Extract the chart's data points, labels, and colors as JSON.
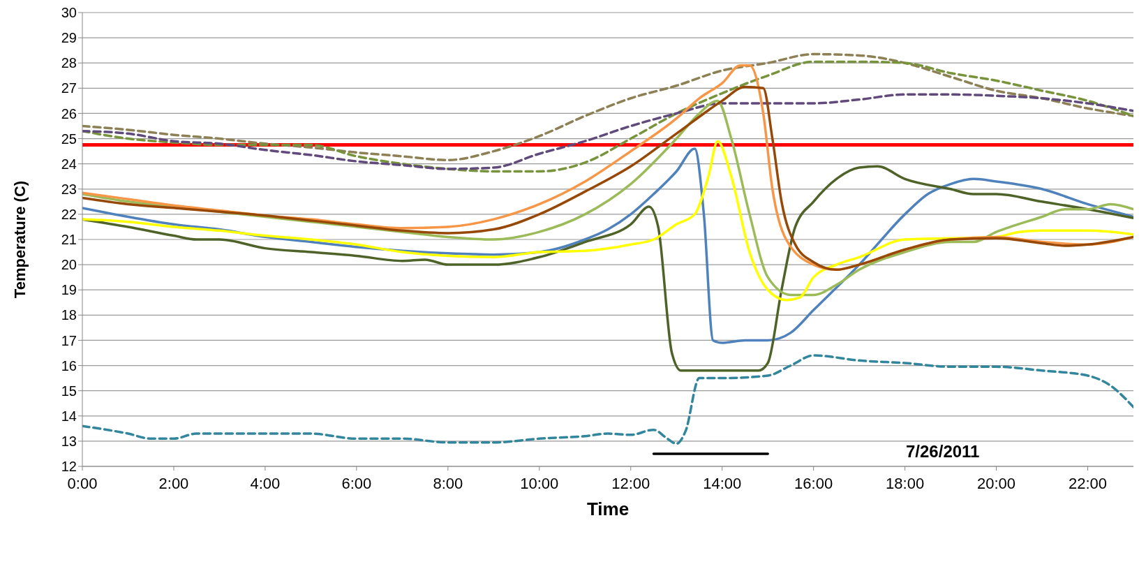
{
  "chart_data": {
    "type": "line",
    "xlabel": "Time",
    "ylabel": "Temperature (C)",
    "annotations": [
      "7/26/2011"
    ],
    "xlim": [
      0,
      23
    ],
    "xticks": [
      {
        "value": 0,
        "label": "0:00"
      },
      {
        "value": 2,
        "label": "2:00"
      },
      {
        "value": 4,
        "label": "4:00"
      },
      {
        "value": 6,
        "label": "6:00"
      },
      {
        "value": 8,
        "label": "8:00"
      },
      {
        "value": 10,
        "label": "10:00"
      },
      {
        "value": 12,
        "label": "12:00"
      },
      {
        "value": 14,
        "label": "14:00"
      },
      {
        "value": 16,
        "label": "16:00"
      },
      {
        "value": 18,
        "label": "18:00"
      },
      {
        "value": 20,
        "label": "20:00"
      },
      {
        "value": 22,
        "label": "22:00"
      }
    ],
    "ylim": [
      12,
      30
    ],
    "yticks": [
      12,
      13,
      14,
      15,
      16,
      17,
      18,
      19,
      20,
      21,
      22,
      23,
      24,
      25,
      26,
      27,
      28,
      29,
      30
    ],
    "grid": "y",
    "marker": "none",
    "ref_lines": [
      {
        "axis": "y",
        "value": 24.75,
        "color": "#ff0000",
        "line_style": "solid"
      }
    ],
    "series": [
      {
        "color": "#8c8054",
        "line_style": "dashed",
        "x": [
          0,
          1,
          2,
          3,
          4,
          5,
          6,
          7,
          8,
          9,
          10,
          11,
          12,
          13,
          14,
          15,
          16,
          17,
          18,
          19,
          20,
          21,
          22,
          23
        ],
        "values": [
          25.5,
          25.35,
          25.15,
          25.0,
          24.8,
          24.65,
          24.45,
          24.3,
          24.15,
          24.5,
          25.1,
          25.9,
          26.6,
          27.1,
          27.7,
          28.0,
          28.35,
          28.3,
          28.0,
          27.45,
          26.9,
          26.6,
          26.2,
          25.9
        ]
      },
      {
        "color": "#77933c",
        "line_style": "dashed",
        "x": [
          0,
          1,
          2,
          3,
          4,
          5,
          6,
          7,
          8,
          9,
          10,
          11,
          12,
          13,
          14,
          15,
          16,
          17,
          18,
          19,
          20,
          21,
          22,
          23
        ],
        "values": [
          25.3,
          25.0,
          24.85,
          24.75,
          24.75,
          24.75,
          24.3,
          24.0,
          23.8,
          23.7,
          23.7,
          24.05,
          25.0,
          26.0,
          26.8,
          27.5,
          28.05,
          28.05,
          28.0,
          27.6,
          27.3,
          26.9,
          26.5,
          25.9
        ]
      },
      {
        "color": "#604a7b",
        "line_style": "dashed",
        "x": [
          0,
          1,
          2,
          3,
          4,
          5,
          6,
          7,
          8,
          9,
          10,
          11,
          12,
          13,
          14,
          15,
          16,
          17,
          18,
          19,
          20,
          21,
          22,
          23
        ],
        "values": [
          25.3,
          25.2,
          24.9,
          24.8,
          24.55,
          24.35,
          24.1,
          23.95,
          23.8,
          23.85,
          24.4,
          24.9,
          25.5,
          26.0,
          26.4,
          26.4,
          26.4,
          26.55,
          26.75,
          26.75,
          26.7,
          26.6,
          26.4,
          26.1
        ]
      },
      {
        "color": "#31859c",
        "line_style": "dashed",
        "x": [
          0,
          1,
          1.5,
          2,
          2.5,
          3,
          4,
          5,
          6,
          7,
          8,
          9,
          10,
          11,
          11.5,
          12,
          12.5,
          12.8,
          13,
          13.2,
          13.5,
          14,
          15,
          15.5,
          16,
          17,
          18,
          19,
          20,
          21,
          22,
          22.5,
          23
        ],
        "values": [
          13.6,
          13.3,
          13.1,
          13.1,
          13.3,
          13.3,
          13.3,
          13.3,
          13.1,
          13.1,
          12.95,
          12.95,
          13.1,
          13.2,
          13.3,
          13.25,
          13.45,
          13.1,
          12.9,
          13.4,
          15.5,
          15.5,
          15.6,
          16.0,
          16.4,
          16.2,
          16.1,
          15.95,
          15.95,
          15.8,
          15.6,
          15.2,
          14.35
        ]
      },
      {
        "color": "#4f81bd",
        "line_style": "solid",
        "x": [
          0,
          1,
          2,
          3,
          4,
          5,
          6,
          7,
          8,
          9,
          10,
          11,
          11.5,
          12,
          12.5,
          13,
          13.4,
          13.6,
          13.8,
          14,
          14.5,
          15,
          15.5,
          16,
          17,
          18,
          18.5,
          19,
          19.5,
          20,
          21,
          22,
          23
        ],
        "values": [
          22.25,
          21.9,
          21.6,
          21.4,
          21.1,
          20.9,
          20.7,
          20.55,
          20.45,
          20.4,
          20.5,
          21.0,
          21.4,
          22.0,
          22.8,
          23.7,
          24.6,
          22.0,
          17.0,
          16.9,
          17.0,
          17.0,
          17.3,
          18.2,
          20.0,
          22.0,
          22.8,
          23.2,
          23.4,
          23.3,
          23.0,
          22.4,
          21.9
        ]
      },
      {
        "color": "#4f6228",
        "line_style": "solid",
        "x": [
          0,
          1,
          2,
          2.5,
          3,
          4,
          5,
          6,
          7,
          7.5,
          8,
          9,
          10,
          11,
          12,
          12.4,
          12.6,
          12.9,
          13.1,
          14,
          14.8,
          15,
          15.3,
          15.6,
          16,
          16.5,
          17,
          17.4,
          18,
          19,
          19.5,
          20,
          21,
          22,
          23
        ],
        "values": [
          21.8,
          21.5,
          21.15,
          21.0,
          21.0,
          20.65,
          20.5,
          20.35,
          20.15,
          20.2,
          20.0,
          20.0,
          20.3,
          20.9,
          21.6,
          22.3,
          21.5,
          16.5,
          15.8,
          15.8,
          15.8,
          16.1,
          19.0,
          21.5,
          22.5,
          23.4,
          23.85,
          23.9,
          23.4,
          23.0,
          22.8,
          22.8,
          22.5,
          22.2,
          21.85
        ]
      },
      {
        "color": "#9bbb59",
        "line_style": "solid",
        "x": [
          0,
          1,
          2,
          3,
          4,
          5,
          6,
          7,
          8,
          9,
          10,
          11,
          12,
          13,
          13.5,
          13.9,
          14.2,
          14.6,
          15,
          15.5,
          16,
          16.5,
          17,
          18,
          19,
          19.5,
          20,
          21,
          21.5,
          22,
          22.5,
          23
        ],
        "values": [
          22.8,
          22.5,
          22.3,
          22.1,
          21.9,
          21.7,
          21.5,
          21.3,
          21.1,
          21.0,
          21.3,
          22.0,
          23.2,
          25.0,
          26.0,
          26.5,
          25.0,
          22.0,
          19.5,
          18.8,
          18.8,
          19.2,
          19.8,
          20.5,
          20.9,
          20.9,
          21.3,
          21.9,
          22.2,
          22.2,
          22.4,
          22.2
        ]
      },
      {
        "color": "#ffff00",
        "line_style": "solid",
        "x": [
          0,
          1,
          2,
          3,
          4,
          5,
          6,
          7,
          8,
          9,
          10,
          11,
          12,
          12.5,
          13,
          13.4,
          13.7,
          13.9,
          14.2,
          14.6,
          15,
          15.4,
          15.7,
          16,
          16.5,
          17,
          18,
          19,
          20,
          20.5,
          21,
          22,
          23
        ],
        "values": [
          21.8,
          21.7,
          21.5,
          21.35,
          21.15,
          21.0,
          20.8,
          20.5,
          20.35,
          20.3,
          20.5,
          20.55,
          20.8,
          21.0,
          21.6,
          22.0,
          23.5,
          24.9,
          23.5,
          20.5,
          19.0,
          18.6,
          18.7,
          19.5,
          20.0,
          20.3,
          21.0,
          21.05,
          21.1,
          21.3,
          21.35,
          21.35,
          21.2
        ]
      },
      {
        "color": "#f79646",
        "line_style": "solid",
        "x": [
          0,
          1,
          2,
          3,
          4,
          5,
          6,
          7,
          8,
          9,
          10,
          11,
          12,
          13,
          13.5,
          14,
          14.4,
          14.6,
          14.9,
          15.1,
          15.4,
          16,
          16.5,
          17,
          18,
          19,
          20,
          21,
          22,
          23
        ],
        "values": [
          22.85,
          22.6,
          22.35,
          22.15,
          21.95,
          21.8,
          21.6,
          21.45,
          21.5,
          21.8,
          22.4,
          23.3,
          24.5,
          25.8,
          26.6,
          27.2,
          27.9,
          27.9,
          26.0,
          23.0,
          21.0,
          20.0,
          19.8,
          20.0,
          20.6,
          21.0,
          21.1,
          20.9,
          20.8,
          21.1
        ]
      },
      {
        "color": "#974706",
        "line_style": "solid",
        "x": [
          0,
          1,
          2,
          3,
          4,
          5,
          6,
          7,
          8,
          9,
          10,
          11,
          12,
          13,
          14,
          14.5,
          14.9,
          15.1,
          15.3,
          15.6,
          16,
          16.5,
          17,
          18,
          19,
          20,
          21,
          21.5,
          22,
          23
        ],
        "values": [
          22.65,
          22.4,
          22.25,
          22.1,
          21.95,
          21.75,
          21.55,
          21.35,
          21.25,
          21.4,
          22.0,
          22.9,
          23.9,
          25.2,
          26.5,
          27.05,
          27.0,
          25.0,
          22.5,
          20.8,
          20.1,
          19.8,
          20.0,
          20.6,
          21.0,
          21.05,
          20.85,
          20.75,
          20.8,
          21.1
        ]
      },
      {
        "color": "#000000",
        "line_style": "solid",
        "x": [
          12.5,
          15
        ],
        "values": [
          12.5,
          12.5
        ]
      }
    ]
  }
}
